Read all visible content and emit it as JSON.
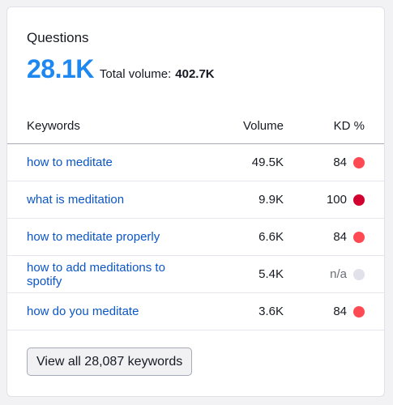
{
  "widget": {
    "title": "Questions",
    "count": "28.1K",
    "total_label": "Total volume:",
    "total_value": "402.7K"
  },
  "table": {
    "headers": {
      "keyword": "Keywords",
      "volume": "Volume",
      "kd": "KD %"
    },
    "rows": [
      {
        "keyword": "how to meditate",
        "volume": "49.5K",
        "kd": "84",
        "kd_color": "#ff4953"
      },
      {
        "keyword": "what is meditation",
        "volume": "9.9K",
        "kd": "100",
        "kd_color": "#d1002f"
      },
      {
        "keyword": "how to meditate properly",
        "volume": "6.6K",
        "kd": "84",
        "kd_color": "#ff4953"
      },
      {
        "keyword": "how to add meditations to spotify",
        "volume": "5.4K",
        "kd": "n/a",
        "kd_color": "#e0e1e9"
      },
      {
        "keyword": "how do you meditate",
        "volume": "3.6K",
        "kd": "84",
        "kd_color": "#ff4953"
      }
    ]
  },
  "footer": {
    "view_all_label": "View all 28,087 keywords"
  },
  "colors": {
    "accent": "#1e88f0",
    "link": "#0b56c6"
  }
}
